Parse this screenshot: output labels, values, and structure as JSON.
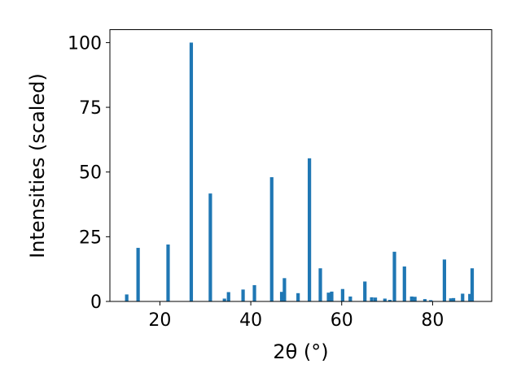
{
  "chart_data": {
    "type": "bar",
    "xlabel": "2θ (°)",
    "ylabel": "Intensities (scaled)",
    "xlim": [
      9,
      93
    ],
    "ylim": [
      0,
      105
    ],
    "xticks": [
      20,
      40,
      60,
      80
    ],
    "yticks": [
      0,
      25,
      50,
      75,
      100
    ],
    "bar_color": "#1f77b4",
    "x": [
      12.7,
      15.2,
      21.8,
      26.9,
      31.1,
      34.2,
      35.1,
      38.3,
      40.8,
      44.6,
      46.8,
      47.4,
      50.4,
      52.9,
      55.3,
      57.1,
      57.8,
      60.2,
      61.9,
      65.1,
      66.6,
      67.4,
      69.5,
      70.6,
      71.6,
      73.8,
      75.4,
      76.1,
      78.3,
      79.6,
      82.6,
      84.0,
      84.6,
      86.6,
      88.2,
      88.7
    ],
    "y": [
      2.7,
      20.7,
      22.0,
      100,
      41.7,
      1.1,
      3.6,
      4.6,
      6.3,
      48.0,
      3.7,
      9.0,
      3.2,
      55.3,
      12.8,
      3.4,
      3.8,
      4.8,
      1.9,
      7.7,
      1.6,
      1.5,
      1.1,
      0.6,
      19.2,
      13.5,
      1.9,
      1.8,
      0.9,
      0.5,
      16.2,
      1.2,
      1.3,
      3.0,
      2.9,
      12.8
    ]
  }
}
